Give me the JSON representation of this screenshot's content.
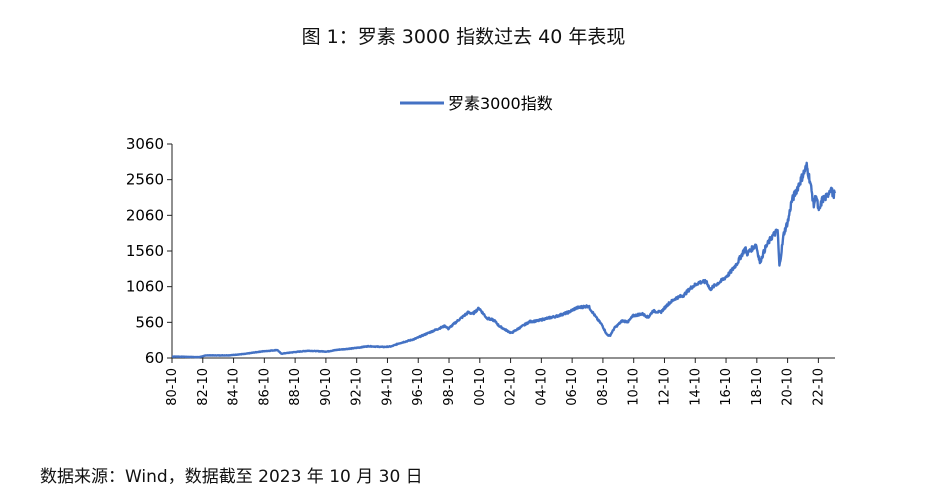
{
  "figure": {
    "title": "图 1：罗素 3000 指数过去 40 年表现",
    "source": "数据来源：Wind，数据截至 2023 年 10 月 30 日"
  },
  "colors": {
    "series": "#4472C4",
    "axis": "#222222"
  },
  "chart_data": {
    "type": "line",
    "title": "图 1：罗素 3000 指数过去 40 年表现",
    "xlabel": "",
    "ylabel": "",
    "legend": "top-center",
    "grid": false,
    "ylim": [
      60,
      3060
    ],
    "yticks": [
      "60",
      "560",
      "1060",
      "1560",
      "2060",
      "2560",
      "3060"
    ],
    "xlim": [
      1980.75,
      2023.83
    ],
    "xticks": [
      "80-10",
      "82-10",
      "84-10",
      "86-10",
      "88-10",
      "90-10",
      "92-10",
      "94-10",
      "96-10",
      "98-10",
      "00-10",
      "02-10",
      "04-10",
      "06-10",
      "08-10",
      "10-10",
      "12-10",
      "14-10",
      "16-10",
      "18-10",
      "20-10",
      "22-10"
    ],
    "series": [
      {
        "name": "罗素3000指数",
        "x": [
          1980.75,
          1981.5,
          1982.5,
          1983.0,
          1983.5,
          1984.5,
          1985.5,
          1986.5,
          1987.6,
          1987.85,
          1988.5,
          1989.6,
          1990.8,
          1991.5,
          1992.5,
          1993.5,
          1994.5,
          1995.0,
          1995.5,
          1996.5,
          1997.5,
          1998.5,
          1998.7,
          1999.3,
          2000.0,
          2000.3,
          2000.7,
          2001.2,
          2001.7,
          2002.0,
          2002.5,
          2002.8,
          2003.5,
          2004.0,
          2004.5,
          2005.0,
          2005.8,
          2006.5,
          2007.0,
          2007.8,
          2008.3,
          2008.7,
          2009.0,
          2009.2,
          2009.5,
          2010.0,
          2010.4,
          2010.7,
          2011.3,
          2011.7,
          2012.0,
          2012.5,
          2013.0,
          2013.5,
          2014.0,
          2014.5,
          2015.0,
          2015.5,
          2015.7,
          2016.1,
          2016.5,
          2017.0,
          2017.5,
          2018.0,
          2018.1,
          2018.7,
          2018.95,
          2019.3,
          2019.7,
          2020.1,
          2020.22,
          2020.5,
          2020.8,
          2021.0,
          2021.5,
          2021.99,
          2022.2,
          2022.45,
          2022.6,
          2022.78,
          2023.0,
          2023.3,
          2023.55,
          2023.7,
          2023.83
        ],
        "values": [
          80,
          78,
          72,
          98,
          96,
          98,
          118,
          150,
          172,
          120,
          138,
          162,
          150,
          175,
          195,
          225,
          215,
          222,
          265,
          325,
          420,
          510,
          470,
          580,
          700,
          680,
          760,
          620,
          585,
          510,
          445,
          410,
          505,
          570,
          580,
          610,
          650,
          700,
          760,
          790,
          630,
          520,
          390,
          370,
          480,
          580,
          570,
          650,
          680,
          630,
          720,
          700,
          820,
          900,
          940,
          1050,
          1120,
          1130,
          1020,
          1090,
          1150,
          1250,
          1400,
          1600,
          1520,
          1650,
          1400,
          1600,
          1750,
          1850,
          1340,
          1800,
          2000,
          2250,
          2500,
          2750,
          2550,
          2200,
          2350,
          2100,
          2280,
          2320,
          2450,
          2350,
          2370
        ]
      }
    ]
  }
}
